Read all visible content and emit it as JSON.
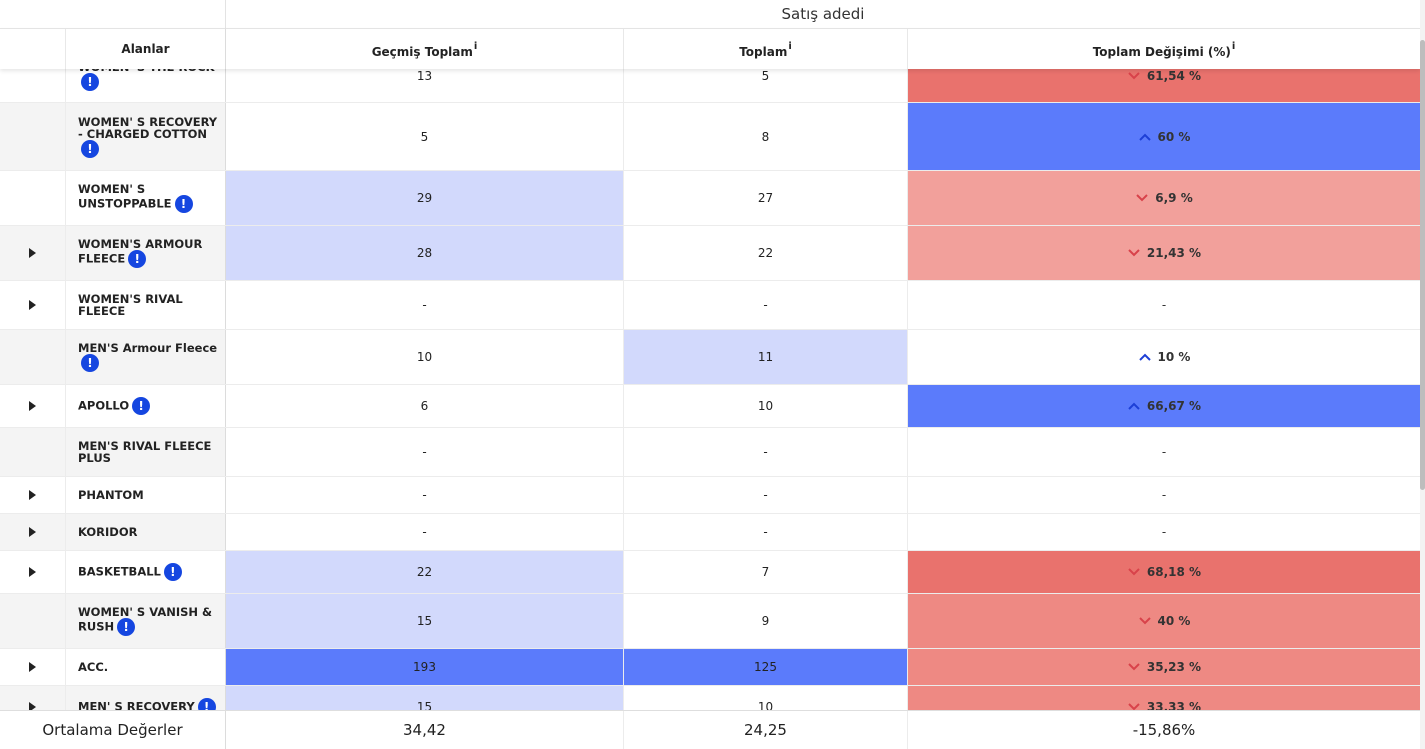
{
  "header": {
    "group_title": "Satış adedi",
    "columns": {
      "fields": "Alanlar",
      "past_total": "Geçmiş Toplam",
      "total": "Toplam",
      "change": "Toplam Değişimi (%)",
      "info_marker": "i"
    }
  },
  "colors": {
    "light_blue": "#d2d9fc",
    "strong_blue": "#5b7bfb",
    "light_red": "#f2a09b",
    "mid_red": "#ee8983",
    "strong_red": "#e9726d",
    "arrow_up": "#1d3fd6",
    "arrow_down": "#d8424a"
  },
  "warn_icon_symbol": "!",
  "rows": [
    {
      "name": "WOMEN' S THE ROCK",
      "expandable": false,
      "warn": true,
      "past": "13",
      "total": "5",
      "change": "61,54 %",
      "dir": "down"
    },
    {
      "name": "WOMEN' S RECOVERY - CHARGED COTTON",
      "expandable": false,
      "warn": true,
      "past": "5",
      "total": "8",
      "change": "60 %",
      "dir": "up"
    },
    {
      "name": "WOMEN' S UNSTOPPABLE",
      "expandable": false,
      "warn": true,
      "past": "29",
      "total": "27",
      "change": "6,9 %",
      "dir": "down"
    },
    {
      "name": "WOMEN'S ARMOUR FLEECE",
      "expandable": true,
      "warn": true,
      "past": "28",
      "total": "22",
      "change": "21,43 %",
      "dir": "down"
    },
    {
      "name": "WOMEN'S RIVAL FLEECE",
      "expandable": true,
      "warn": false,
      "past": "-",
      "total": "-",
      "change": "-",
      "dir": "none"
    },
    {
      "name": "MEN'S Armour Fleece",
      "expandable": false,
      "warn": true,
      "past": "10",
      "total": "11",
      "change": "10 %",
      "dir": "up"
    },
    {
      "name": "APOLLO",
      "expandable": true,
      "warn": true,
      "past": "6",
      "total": "10",
      "change": "66,67 %",
      "dir": "up"
    },
    {
      "name": "MEN'S RIVAL FLEECE PLUS",
      "expandable": false,
      "warn": false,
      "past": "-",
      "total": "-",
      "change": "-",
      "dir": "none"
    },
    {
      "name": "PHANTOM",
      "expandable": true,
      "warn": false,
      "past": "-",
      "total": "-",
      "change": "-",
      "dir": "none"
    },
    {
      "name": "KORIDOR",
      "expandable": true,
      "warn": false,
      "past": "-",
      "total": "-",
      "change": "-",
      "dir": "none"
    },
    {
      "name": "BASKETBALL",
      "expandable": true,
      "warn": true,
      "past": "22",
      "total": "7",
      "change": "68,18 %",
      "dir": "down"
    },
    {
      "name": "WOMEN' S VANISH & RUSH",
      "expandable": false,
      "warn": true,
      "past": "15",
      "total": "9",
      "change": "40 %",
      "dir": "down"
    },
    {
      "name": "ACC.",
      "expandable": true,
      "warn": false,
      "past": "193",
      "total": "125",
      "change": "35,23 %",
      "dir": "down"
    },
    {
      "name": "MEN' S RECOVERY",
      "expandable": true,
      "warn": true,
      "past": "15",
      "total": "10",
      "change": "33,33 %",
      "dir": "down"
    }
  ],
  "footer": {
    "label": "Ortalama Değerler",
    "past_avg": "34,42",
    "total_avg": "24,25",
    "change_avg": "-15,86%"
  }
}
